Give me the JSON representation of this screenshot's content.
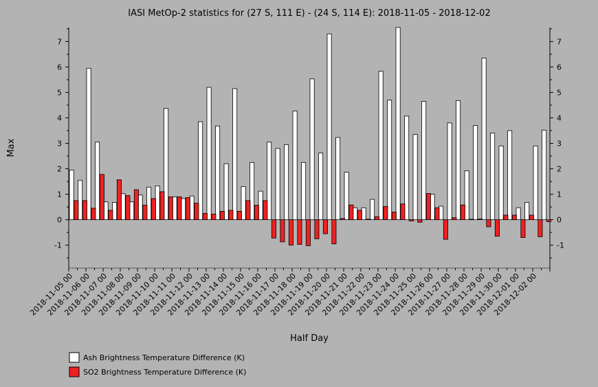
{
  "chart_data": {
    "type": "bar",
    "title": "IASI MetOp-2 statistics for (27 S, 111 E) - (24 S, 114 E): 2018-11-05 - 2018-12-02",
    "xlabel": "Half Day",
    "ylabel": "Max",
    "ylim": [
      -1.9,
      7.55
    ],
    "yticks": [
      -1,
      0,
      1,
      2,
      3,
      4,
      5,
      6,
      7
    ],
    "x_tick_labels": [
      "2018-11-05 00",
      "2018-11-06 00",
      "2018-11-07 00",
      "2018-11-08 00",
      "2018-11-09 00",
      "2018-11-10 00",
      "2018-11-11 00",
      "2018-11-12 00",
      "2018-11-13 00",
      "2018-11-14 00",
      "2018-11-15 00",
      "2018-11-16 00",
      "2018-11-17 00",
      "2018-11-18 00",
      "2018-11-19 00",
      "2018-11-20 00",
      "2018-11-21 00",
      "2018-11-22 00",
      "2018-11-23 00",
      "2018-11-24 00",
      "2018-11-25 00",
      "2018-11-26 00",
      "2018-11-27 00",
      "2018-11-28 00",
      "2018-11-29 00",
      "2018-11-30 00",
      "2018-12-01 00",
      "2018-12-02 00"
    ],
    "legend_position": "bottom-left",
    "series": [
      {
        "name": "Ash Brightness Temperature Difference (K)",
        "color": "#ffffff",
        "values": [
          1.95,
          1.55,
          5.95,
          3.05,
          0.7,
          0.68,
          1.02,
          0.7,
          0.97,
          1.28,
          1.33,
          4.37,
          0.9,
          0.83,
          0.93,
          3.85,
          5.2,
          3.68,
          2.2,
          5.15,
          1.3,
          2.25,
          1.12,
          3.05,
          2.8,
          2.95,
          4.27,
          2.25,
          5.53,
          2.62,
          7.3,
          3.23,
          1.87,
          0.47,
          0.47,
          0.8,
          5.83,
          4.7,
          7.55,
          4.07,
          3.35,
          4.65,
          1.0,
          0.53,
          3.8,
          4.68,
          1.92,
          3.7,
          6.35,
          3.4,
          2.9,
          3.5,
          0.47,
          0.68,
          2.9,
          3.52
        ]
      },
      {
        "name": "SO2 Brightness Temperature Difference (K)",
        "color": "#ee2222",
        "values": [
          0.75,
          0.75,
          0.45,
          1.78,
          0.37,
          1.57,
          0.95,
          1.18,
          0.57,
          0.83,
          1.1,
          0.9,
          0.9,
          0.87,
          0.65,
          0.25,
          0.22,
          0.33,
          0.37,
          0.33,
          0.75,
          0.57,
          0.75,
          -0.72,
          -0.87,
          -1.0,
          -0.97,
          -1.02,
          -0.75,
          -0.55,
          -0.95,
          0.05,
          0.58,
          0.37,
          0.02,
          0.12,
          0.52,
          0.3,
          0.62,
          -0.05,
          -0.1,
          1.03,
          0.47,
          -0.77,
          0.08,
          0.58,
          0.02,
          0.03,
          -0.28,
          -0.65,
          0.18,
          0.18,
          -0.7,
          0.18,
          -0.67,
          -0.08
        ]
      }
    ]
  }
}
